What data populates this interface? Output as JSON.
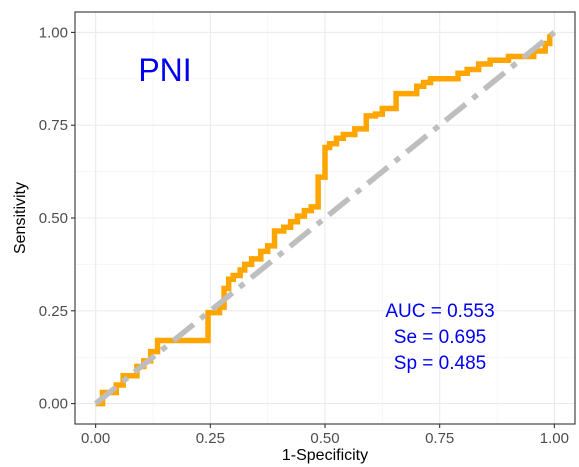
{
  "chart_data": {
    "type": "line",
    "title": "",
    "xlabel": "1-Specificity",
    "ylabel": "Sensitivity",
    "xlim": [
      0,
      1
    ],
    "ylim": [
      0,
      1
    ],
    "x_ticks": [
      "0.00",
      "0.25",
      "0.50",
      "0.75",
      "1.00"
    ],
    "y_ticks": [
      "0.00",
      "0.25",
      "0.50",
      "0.75",
      "1.00"
    ],
    "grid": true,
    "label": "PNI",
    "annotations": [
      "AUC = 0.553",
      "Se = 0.695",
      "Sp = 0.485"
    ],
    "colors": {
      "roc": "#FFA500",
      "reference": "#BEBEBE",
      "text": "#0000EE"
    },
    "series": [
      {
        "x": [
          0.0,
          0.015,
          0.015,
          0.03,
          0.045,
          0.045,
          0.06,
          0.06,
          0.09,
          0.09,
          0.105,
          0.105,
          0.12,
          0.12,
          0.135,
          0.135,
          0.245,
          0.245,
          0.27,
          0.27,
          0.28,
          0.28,
          0.29,
          0.29,
          0.3,
          0.3,
          0.315,
          0.315,
          0.325,
          0.325,
          0.34,
          0.34,
          0.36,
          0.36,
          0.375,
          0.375,
          0.39,
          0.39,
          0.41,
          0.41,
          0.425,
          0.425,
          0.44,
          0.44,
          0.455,
          0.455,
          0.47,
          0.47,
          0.485,
          0.485,
          0.5,
          0.5,
          0.51,
          0.51,
          0.525,
          0.525,
          0.54,
          0.54,
          0.565,
          0.565,
          0.59,
          0.59,
          0.61,
          0.61,
          0.625,
          0.625,
          0.655,
          0.655,
          0.7,
          0.7,
          0.715,
          0.715,
          0.73,
          0.73,
          0.79,
          0.79,
          0.81,
          0.81,
          0.835,
          0.835,
          0.86,
          0.86,
          0.9,
          0.9,
          0.955,
          0.955,
          0.98,
          0.98,
          0.99,
          0.99,
          1.0
        ],
        "y": [
          0.0,
          0.0,
          0.03,
          0.03,
          0.03,
          0.05,
          0.05,
          0.075,
          0.075,
          0.1,
          0.1,
          0.115,
          0.115,
          0.14,
          0.14,
          0.17,
          0.17,
          0.245,
          0.245,
          0.26,
          0.26,
          0.31,
          0.31,
          0.335,
          0.335,
          0.345,
          0.345,
          0.36,
          0.36,
          0.375,
          0.375,
          0.39,
          0.39,
          0.41,
          0.41,
          0.425,
          0.425,
          0.465,
          0.465,
          0.475,
          0.475,
          0.49,
          0.49,
          0.505,
          0.505,
          0.52,
          0.52,
          0.53,
          0.53,
          0.61,
          0.61,
          0.69,
          0.69,
          0.7,
          0.7,
          0.715,
          0.715,
          0.725,
          0.725,
          0.74,
          0.74,
          0.775,
          0.775,
          0.78,
          0.78,
          0.795,
          0.795,
          0.835,
          0.835,
          0.855,
          0.855,
          0.865,
          0.865,
          0.875,
          0.875,
          0.89,
          0.89,
          0.9,
          0.9,
          0.915,
          0.915,
          0.925,
          0.925,
          0.935,
          0.935,
          0.95,
          0.95,
          0.97,
          0.97,
          0.99,
          1.0
        ]
      },
      {
        "x": [
          0,
          1
        ],
        "y": [
          0,
          1
        ]
      }
    ]
  }
}
